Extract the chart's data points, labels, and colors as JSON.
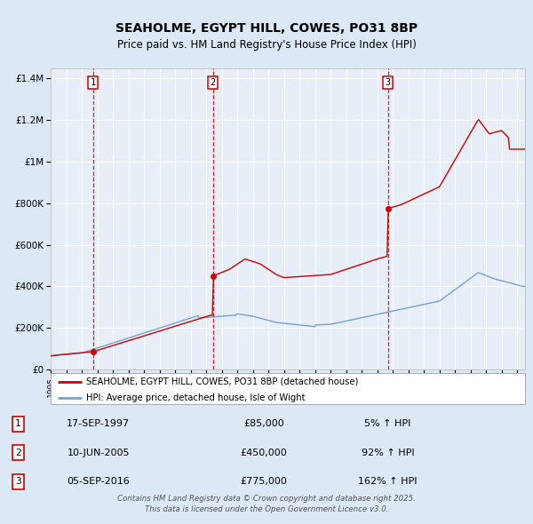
{
  "title": "SEAHOLME, EGYPT HILL, COWES, PO31 8BP",
  "subtitle": "Price paid vs. HM Land Registry's House Price Index (HPI)",
  "red_label": "SEAHOLME, EGYPT HILL, COWES, PO31 8BP (detached house)",
  "blue_label": "HPI: Average price, detached house, Isle of Wight",
  "sale1_date": "17-SEP-1997",
  "sale1_price": 85000,
  "sale1_hpi": "5% ↑ HPI",
  "sale2_date": "10-JUN-2005",
  "sale2_price": 450000,
  "sale2_hpi": "92% ↑ HPI",
  "sale3_date": "05-SEP-2016",
  "sale3_price": 775000,
  "sale3_hpi": "162% ↑ HPI",
  "background_color": "#dce8f5",
  "plot_bg": "#e8eef8",
  "red_line_color": "#cc0000",
  "blue_line_color": "#6699cc",
  "footer": "Contains HM Land Registry data © Crown copyright and database right 2025.\nThis data is licensed under the Open Government Licence v3.0.",
  "sale1_x": 1997.72,
  "sale2_x": 2005.44,
  "sale3_x": 2016.68,
  "xmin": 1995,
  "xmax": 2025.5,
  "ymin": 0,
  "ymax": 1450000
}
